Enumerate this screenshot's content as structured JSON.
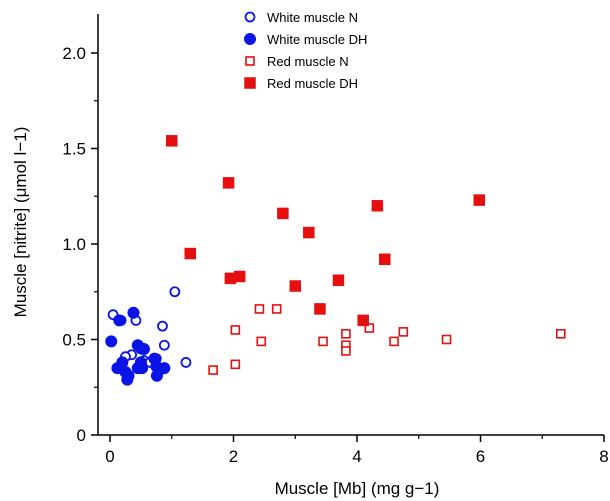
{
  "chart_data": {
    "type": "scatter",
    "title": "",
    "xlabel": "Muscle [Mb] (mg g−1)",
    "ylabel": "Muscle [nitrite] (μmol l−1)",
    "xlim": [
      0,
      8
    ],
    "ylim": [
      0,
      2.0
    ],
    "x_ticks": [
      "0",
      "2",
      "4",
      "6",
      "8"
    ],
    "y_ticks": [
      "0",
      "0.5",
      "1.0",
      "1.5",
      "2.0"
    ],
    "grid": false,
    "legend_position": "top-center",
    "colors": {
      "white": "#0a14e6",
      "red": "#e60f0f"
    },
    "series": [
      {
        "name": "White muscle N",
        "marker": "open-circle",
        "color": "#0a14e6",
        "points": [
          [
            0.05,
            0.63
          ],
          [
            0.18,
            0.6
          ],
          [
            0.38,
            0.64
          ],
          [
            0.42,
            0.6
          ],
          [
            1.05,
            0.75
          ],
          [
            0.35,
            0.42
          ],
          [
            0.5,
            0.45
          ],
          [
            0.55,
            0.39
          ],
          [
            0.65,
            0.38
          ],
          [
            0.25,
            0.41
          ],
          [
            0.85,
            0.57
          ],
          [
            0.88,
            0.47
          ],
          [
            1.23,
            0.38
          ],
          [
            0.75,
            0.4
          ]
        ]
      },
      {
        "name": "White muscle DH",
        "marker": "filled-circle",
        "color": "#0a14e6",
        "points": [
          [
            0.02,
            0.49
          ],
          [
            0.15,
            0.6
          ],
          [
            0.38,
            0.64
          ],
          [
            0.45,
            0.47
          ],
          [
            0.55,
            0.45
          ],
          [
            0.12,
            0.35
          ],
          [
            0.2,
            0.38
          ],
          [
            0.25,
            0.33
          ],
          [
            0.28,
            0.29
          ],
          [
            0.3,
            0.31
          ],
          [
            0.5,
            0.38
          ],
          [
            0.52,
            0.35
          ],
          [
            0.72,
            0.4
          ],
          [
            0.75,
            0.36
          ],
          [
            0.76,
            0.31
          ],
          [
            0.8,
            0.34
          ],
          [
            0.88,
            0.35
          ],
          [
            0.45,
            0.35
          ]
        ]
      },
      {
        "name": "Red muscle N",
        "marker": "open-square",
        "color": "#e60f0f",
        "points": [
          [
            1.67,
            0.34
          ],
          [
            2.03,
            0.37
          ],
          [
            2.03,
            0.55
          ],
          [
            2.42,
            0.66
          ],
          [
            2.45,
            0.49
          ],
          [
            2.7,
            0.66
          ],
          [
            3.45,
            0.49
          ],
          [
            3.82,
            0.53
          ],
          [
            3.82,
            0.47
          ],
          [
            3.82,
            0.44
          ],
          [
            4.2,
            0.56
          ],
          [
            4.6,
            0.49
          ],
          [
            4.75,
            0.54
          ],
          [
            5.45,
            0.5
          ],
          [
            7.3,
            0.53
          ]
        ]
      },
      {
        "name": "Red muscle DH",
        "marker": "filled-square",
        "color": "#e60f0f",
        "points": [
          [
            1.0,
            1.54
          ],
          [
            1.3,
            0.95
          ],
          [
            1.92,
            1.32
          ],
          [
            1.95,
            0.82
          ],
          [
            2.1,
            0.83
          ],
          [
            2.8,
            1.16
          ],
          [
            3.0,
            0.78
          ],
          [
            3.22,
            1.06
          ],
          [
            3.4,
            0.66
          ],
          [
            3.7,
            0.81
          ],
          [
            4.1,
            0.6
          ],
          [
            4.33,
            1.2
          ],
          [
            4.45,
            0.92
          ],
          [
            5.98,
            1.23
          ]
        ]
      }
    ]
  }
}
